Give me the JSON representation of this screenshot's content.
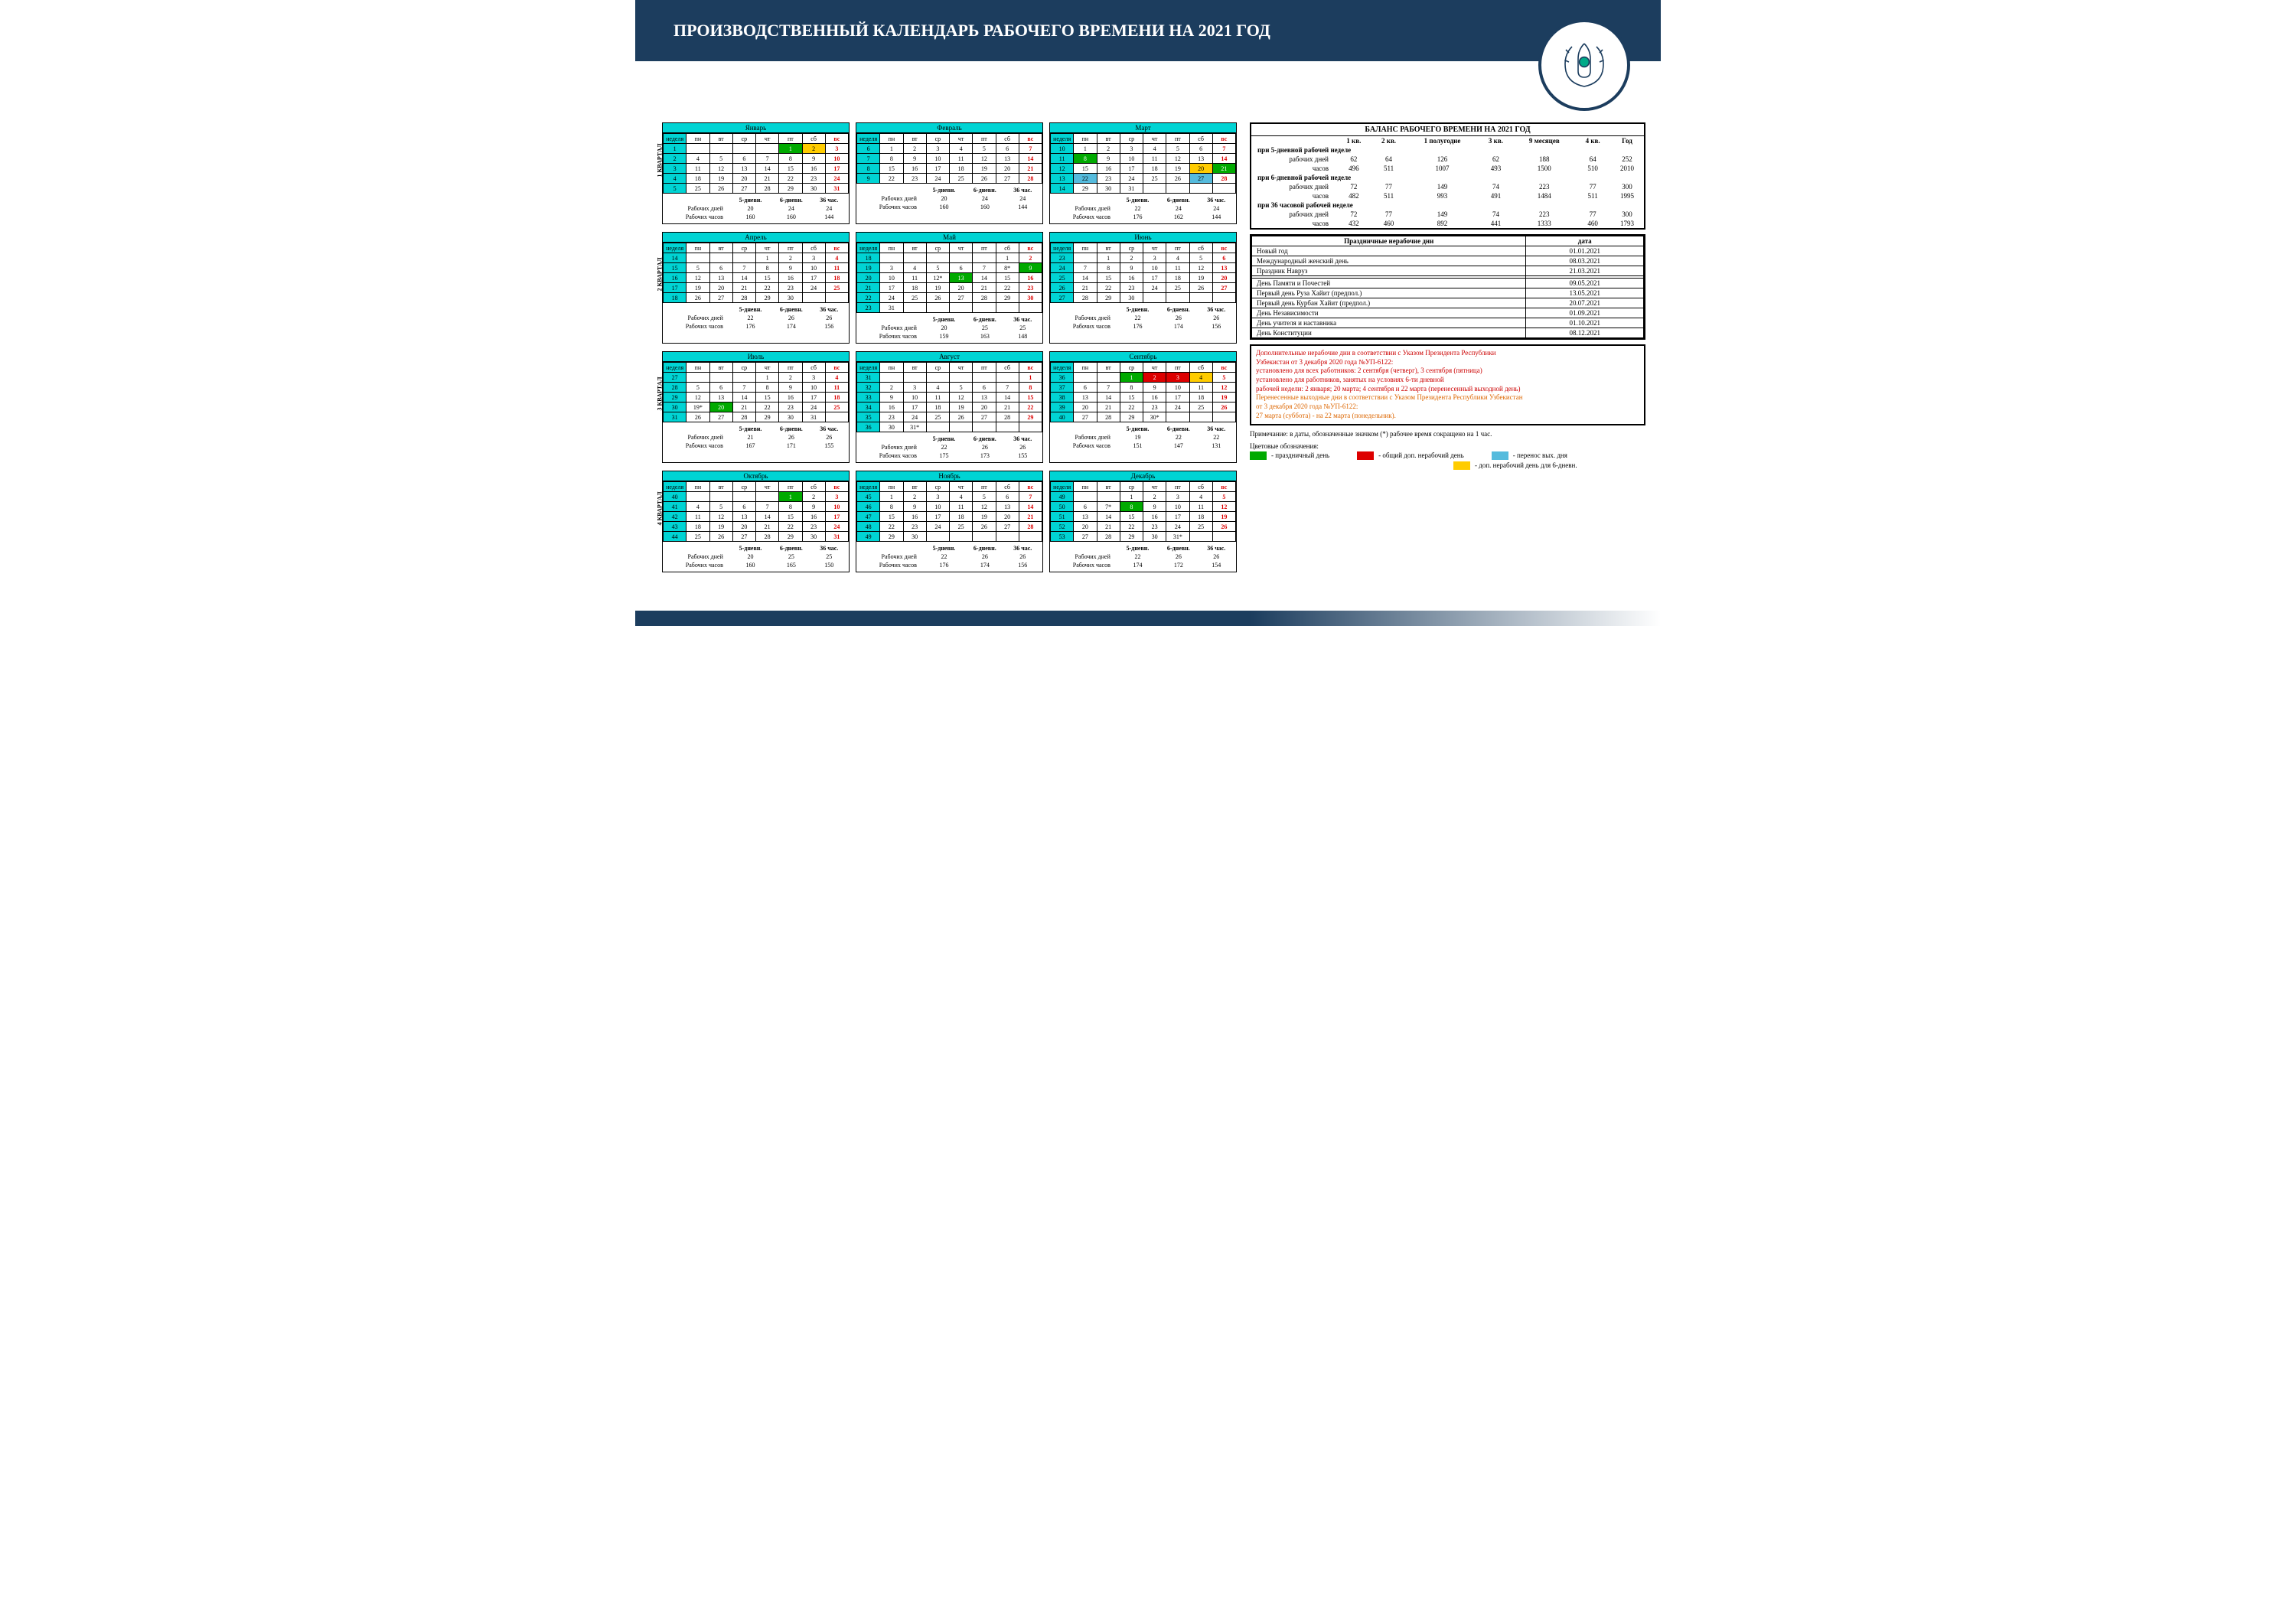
{
  "title": "ПРОИЗВОДСТВЕННЫЙ КАЛЕНДАРЬ РАБОЧЕГО ВРЕМЕНИ  НА 2021 ГОД",
  "day_headers": [
    "неделя",
    "пн",
    "вт",
    "ср",
    "чт",
    "пт",
    "сб",
    "вс"
  ],
  "quarters": [
    "1 КВАРТАЛ",
    "2 КВАРТАЛ",
    "3 КВАРТАЛ",
    "4 КВАРТАЛ"
  ],
  "stat_cols": [
    "5-дневн.",
    "6-дневн.",
    "36 час."
  ],
  "stat_rows": [
    "Рабочих дней",
    "Рабочих часов"
  ],
  "months": [
    [
      {
        "name": "Январь",
        "weeks": [
          [
            "1",
            "",
            "",
            "",
            "",
            "1",
            "2",
            "3"
          ],
          [
            "2",
            "4",
            "5",
            "6",
            "7",
            "8",
            "9",
            "10"
          ],
          [
            "3",
            "11",
            "12",
            "13",
            "14",
            "15",
            "16",
            "17"
          ],
          [
            "4",
            "18",
            "19",
            "20",
            "21",
            "22",
            "23",
            "24"
          ],
          [
            "5",
            "25",
            "26",
            "27",
            "28",
            "29",
            "30",
            "31"
          ]
        ],
        "cls": {
          "0,5": "hol",
          "0,6": "yel",
          "0,7": "sun",
          "1,6": "",
          "1,7": "sun",
          "2,7": "sun",
          "3,7": "sun",
          "4,7": "sun"
        },
        "stats": [
          [
            "20",
            "24",
            "24"
          ],
          [
            "160",
            "160",
            "144"
          ]
        ]
      },
      {
        "name": "Февраль",
        "weeks": [
          [
            "6",
            "1",
            "2",
            "3",
            "4",
            "5",
            "6",
            "7"
          ],
          [
            "7",
            "8",
            "9",
            "10",
            "11",
            "12",
            "13",
            "14"
          ],
          [
            "8",
            "15",
            "16",
            "17",
            "18",
            "19",
            "20",
            "21"
          ],
          [
            "9",
            "22",
            "23",
            "24",
            "25",
            "26",
            "27",
            "28"
          ]
        ],
        "cls": {
          "0,7": "sun",
          "1,7": "sun",
          "2,7": "sun",
          "3,7": "sun"
        },
        "stats": [
          [
            "20",
            "24",
            "24"
          ],
          [
            "160",
            "160",
            "144"
          ]
        ]
      },
      {
        "name": "Март",
        "weeks": [
          [
            "10",
            "1",
            "2",
            "3",
            "4",
            "5",
            "6",
            "7"
          ],
          [
            "11",
            "8",
            "9",
            "10",
            "11",
            "12",
            "13",
            "14"
          ],
          [
            "12",
            "15",
            "16",
            "17",
            "18",
            "19",
            "20",
            "21"
          ],
          [
            "13",
            "22",
            "23",
            "24",
            "25",
            "26",
            "27",
            "28"
          ],
          [
            "14",
            "29",
            "30",
            "31",
            "",
            "",
            "",
            ""
          ]
        ],
        "cls": {
          "0,7": "sun",
          "1,1": "hol",
          "1,7": "sun",
          "2,6": "yel",
          "2,7": "hol",
          "3,1": "blu",
          "3,6": "blu",
          "3,7": "sun",
          "4,7": "sun"
        },
        "stats": [
          [
            "22",
            "24",
            "24"
          ],
          [
            "176",
            "162",
            "144"
          ]
        ]
      }
    ],
    [
      {
        "name": "Апрель",
        "weeks": [
          [
            "14",
            "",
            "",
            "",
            "1",
            "2",
            "3",
            "4"
          ],
          [
            "15",
            "5",
            "6",
            "7",
            "8",
            "9",
            "10",
            "11"
          ],
          [
            "16",
            "12",
            "13",
            "14",
            "15",
            "16",
            "17",
            "18"
          ],
          [
            "17",
            "19",
            "20",
            "21",
            "22",
            "23",
            "24",
            "25"
          ],
          [
            "18",
            "26",
            "27",
            "28",
            "29",
            "30",
            "",
            ""
          ]
        ],
        "cls": {
          "0,7": "sun",
          "1,7": "sun",
          "2,7": "sun",
          "3,7": "sun"
        },
        "stats": [
          [
            "22",
            "26",
            "26"
          ],
          [
            "176",
            "174",
            "156"
          ]
        ]
      },
      {
        "name": "Май",
        "weeks": [
          [
            "18",
            "",
            "",
            "",
            "",
            "",
            "1",
            "2"
          ],
          [
            "19",
            "3",
            "4",
            "5",
            "6",
            "7",
            "8*",
            "9"
          ],
          [
            "20",
            "10",
            "11",
            "12*",
            "13",
            "14",
            "15",
            "16"
          ],
          [
            "21",
            "17",
            "18",
            "19",
            "20",
            "21",
            "22",
            "23"
          ],
          [
            "22",
            "24",
            "25",
            "26",
            "27",
            "28",
            "29",
            "30"
          ],
          [
            "23",
            "31",
            "",
            "",
            "",
            "",
            "",
            ""
          ]
        ],
        "cls": {
          "0,7": "sun",
          "1,7": "hol",
          "2,4": "hol",
          "2,7": "sun",
          "3,7": "sun",
          "4,7": "sun"
        },
        "stats": [
          [
            "20",
            "25",
            "25"
          ],
          [
            "159",
            "163",
            "148"
          ]
        ]
      },
      {
        "name": "Июнь",
        "weeks": [
          [
            "23",
            "",
            "1",
            "2",
            "3",
            "4",
            "5",
            "6"
          ],
          [
            "24",
            "7",
            "8",
            "9",
            "10",
            "11",
            "12",
            "13"
          ],
          [
            "25",
            "14",
            "15",
            "16",
            "17",
            "18",
            "19",
            "20"
          ],
          [
            "26",
            "21",
            "22",
            "23",
            "24",
            "25",
            "26",
            "27"
          ],
          [
            "27",
            "28",
            "29",
            "30",
            "",
            "",
            "",
            ""
          ]
        ],
        "cls": {
          "0,7": "sun",
          "1,7": "sun",
          "2,7": "sun",
          "3,7": "sun"
        },
        "stats": [
          [
            "22",
            "26",
            "26"
          ],
          [
            "176",
            "174",
            "156"
          ]
        ]
      }
    ],
    [
      {
        "name": "Июль",
        "weeks": [
          [
            "27",
            "",
            "",
            "",
            "1",
            "2",
            "3",
            "4"
          ],
          [
            "28",
            "5",
            "6",
            "7",
            "8",
            "9",
            "10",
            "11"
          ],
          [
            "29",
            "12",
            "13",
            "14",
            "15",
            "16",
            "17",
            "18"
          ],
          [
            "30",
            "19*",
            "20",
            "21",
            "22",
            "23",
            "24",
            "25"
          ],
          [
            "31",
            "26",
            "27",
            "28",
            "29",
            "30",
            "31",
            ""
          ]
        ],
        "cls": {
          "0,7": "sun",
          "1,7": "sun",
          "2,7": "sun",
          "3,2": "hol",
          "3,7": "sun"
        },
        "stats": [
          [
            "21",
            "26",
            "26"
          ],
          [
            "167",
            "171",
            "155"
          ]
        ]
      },
      {
        "name": "Август",
        "weeks": [
          [
            "31",
            "",
            "",
            "",
            "",
            "",
            "",
            "1"
          ],
          [
            "32",
            "2",
            "3",
            "4",
            "5",
            "6",
            "7",
            "8"
          ],
          [
            "33",
            "9",
            "10",
            "11",
            "12",
            "13",
            "14",
            "15"
          ],
          [
            "34",
            "16",
            "17",
            "18",
            "19",
            "20",
            "21",
            "22"
          ],
          [
            "35",
            "23",
            "24",
            "25",
            "26",
            "27",
            "28",
            "29"
          ],
          [
            "36",
            "30",
            "31*",
            "",
            "",
            "",
            "",
            ""
          ]
        ],
        "cls": {
          "0,7": "sun",
          "1,7": "sun",
          "2,7": "sun",
          "3,7": "sun",
          "4,7": "sun"
        },
        "stats": [
          [
            "22",
            "26",
            "26"
          ],
          [
            "175",
            "173",
            "155"
          ]
        ]
      },
      {
        "name": "Сентябрь",
        "weeks": [
          [
            "36",
            "",
            "",
            "1",
            "2",
            "3",
            "4",
            "5"
          ],
          [
            "37",
            "6",
            "7",
            "8",
            "9",
            "10",
            "11",
            "12"
          ],
          [
            "38",
            "13",
            "14",
            "15",
            "16",
            "17",
            "18",
            "19"
          ],
          [
            "39",
            "20",
            "21",
            "22",
            "23",
            "24",
            "25",
            "26"
          ],
          [
            "40",
            "27",
            "28",
            "29",
            "30*",
            "",
            "",
            ""
          ]
        ],
        "cls": {
          "0,3": "hol",
          "0,4": "red",
          "0,5": "red",
          "0,6": "yel",
          "0,7": "sun",
          "1,7": "sun",
          "2,7": "sun",
          "3,7": "sun"
        },
        "stats": [
          [
            "19",
            "22",
            "22"
          ],
          [
            "151",
            "147",
            "131"
          ]
        ]
      }
    ],
    [
      {
        "name": "Октябрь",
        "weeks": [
          [
            "40",
            "",
            "",
            "",
            "",
            "1",
            "2",
            "3"
          ],
          [
            "41",
            "4",
            "5",
            "6",
            "7",
            "8",
            "9",
            "10"
          ],
          [
            "42",
            "11",
            "12",
            "13",
            "14",
            "15",
            "16",
            "17"
          ],
          [
            "43",
            "18",
            "19",
            "20",
            "21",
            "22",
            "23",
            "24"
          ],
          [
            "44",
            "25",
            "26",
            "27",
            "28",
            "29",
            "30",
            "31"
          ]
        ],
        "cls": {
          "0,5": "hol",
          "0,7": "sun",
          "1,7": "sun",
          "2,7": "sun",
          "3,7": "sun",
          "4,7": "sun"
        },
        "stats": [
          [
            "20",
            "25",
            "25"
          ],
          [
            "160",
            "165",
            "150"
          ]
        ]
      },
      {
        "name": "Ноябрь",
        "weeks": [
          [
            "45",
            "1",
            "2",
            "3",
            "4",
            "5",
            "6",
            "7"
          ],
          [
            "46",
            "8",
            "9",
            "10",
            "11",
            "12",
            "13",
            "14"
          ],
          [
            "47",
            "15",
            "16",
            "17",
            "18",
            "19",
            "20",
            "21"
          ],
          [
            "48",
            "22",
            "23",
            "24",
            "25",
            "26",
            "27",
            "28"
          ],
          [
            "49",
            "29",
            "30",
            "",
            "",
            "",
            "",
            ""
          ]
        ],
        "cls": {
          "0,7": "sun",
          "1,7": "sun",
          "2,7": "sun",
          "3,7": "sun"
        },
        "stats": [
          [
            "22",
            "26",
            "26"
          ],
          [
            "176",
            "174",
            "156"
          ]
        ]
      },
      {
        "name": "Декабрь",
        "weeks": [
          [
            "49",
            "",
            "",
            "1",
            "2",
            "3",
            "4",
            "5"
          ],
          [
            "50",
            "6",
            "7*",
            "8",
            "9",
            "10",
            "11",
            "12"
          ],
          [
            "51",
            "13",
            "14",
            "15",
            "16",
            "17",
            "18",
            "19"
          ],
          [
            "52",
            "20",
            "21",
            "22",
            "23",
            "24",
            "25",
            "26"
          ],
          [
            "53",
            "27",
            "28",
            "29",
            "30",
            "31*",
            "",
            ""
          ]
        ],
        "cls": {
          "0,7": "sun",
          "1,3": "hol",
          "1,7": "sun",
          "2,7": "sun",
          "3,7": "sun"
        },
        "stats": [
          [
            "22",
            "26",
            "26"
          ],
          [
            "174",
            "172",
            "154"
          ]
        ]
      }
    ]
  ],
  "balance": {
    "title": "БАЛАНС РАБОЧЕГО ВРЕМЕНИ НА 2021 ГОД",
    "cols": [
      "1 кв.",
      "2 кв.",
      "1 полугодие",
      "3 кв.",
      "9 месяцев",
      "4 кв.",
      "Год"
    ],
    "sections": [
      {
        "h": "при 5-дневной рабочей неделе",
        "rows": [
          [
            "рабочих дней",
            "62",
            "64",
            "126",
            "62",
            "188",
            "64",
            "252"
          ],
          [
            "часов",
            "496",
            "511",
            "1007",
            "493",
            "1500",
            "510",
            "2010"
          ]
        ]
      },
      {
        "h": "при 6-дневной рабочей неделе",
        "rows": [
          [
            "рабочих дней",
            "72",
            "77",
            "149",
            "74",
            "223",
            "77",
            "300"
          ],
          [
            "часов",
            "482",
            "511",
            "993",
            "491",
            "1484",
            "511",
            "1995"
          ]
        ]
      },
      {
        "h": "при 36 часовой рабочей неделе",
        "rows": [
          [
            "рабочих дней",
            "72",
            "77",
            "149",
            "74",
            "223",
            "77",
            "300"
          ],
          [
            "часов",
            "432",
            "460",
            "892",
            "441",
            "1333",
            "460",
            "1793"
          ]
        ]
      }
    ]
  },
  "holidays": {
    "h1": "Праздничные нерабочие дни",
    "h2": "дата",
    "rows": [
      [
        "Новый год",
        "01.01.2021"
      ],
      [
        "Международный женский день",
        "08.03.2021"
      ],
      [
        "Праздник Навруз",
        "21.03.2021"
      ],
      [
        "",
        ""
      ],
      [
        "День Памяти и Почестей",
        "09.05.2021"
      ],
      [
        "Первый день Руза Хайит        (предпол.)",
        "13.05.2021"
      ],
      [
        "Первый день Курбан Хайит (предпол.)",
        "20.07.2021"
      ],
      [
        "День Независимости",
        "01.09.2021"
      ],
      [
        "День учителя и наставника",
        "01.10.2021"
      ],
      [
        "День Конституции",
        "08.12.2021"
      ]
    ]
  },
  "notes": {
    "l1": "Дополнительные нерабочие дни в соответствии с Указом Президента Республики",
    "l2": "Узбекистан от  3 декабря 2020 года №УП-6122:",
    "l3": "установлено для всех работников:  2 сентября  (четверг), 3 сентября (пятница)",
    "l4": "установлено для работников, занятых на условиях 6-ти дневной",
    "l5": "рабочей недели:  2 января; 20 марта; 4 сентября и 22  марта (перенесенный выходной день)",
    "l6": "Перенесенные выходные дни в соответствии с Указом Президента Республики Узбекистан",
    "l7": "от 3 декабря 2020 года №УП-6122:",
    "l8": "27 марта (суббота) - на 22 марта (понедельник)."
  },
  "footnote": "Примечание: в даты, обозначенные значком (*) рабочее время сокращено на 1 час.",
  "legend": {
    "title": "Цветовые обозначения:",
    "items": [
      {
        "c": "#0a0",
        "t": "-   праздничный день"
      },
      {
        "c": "#d00",
        "t": "-   общий доп. нерабочий день"
      },
      {
        "c": "#5bd",
        "t": "-   перенос вых. дня"
      },
      {
        "c": "#fc0",
        "t": "-   доп. нерабочий день для 6-дневн."
      }
    ]
  },
  "colors": {
    "header": "#1c3d5e",
    "cyan": "#00d4d4"
  }
}
